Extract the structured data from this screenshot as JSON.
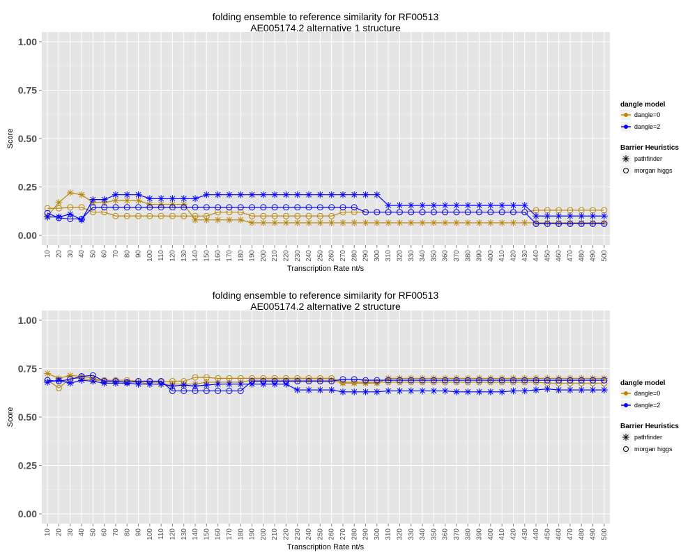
{
  "chart_data": [
    {
      "type": "line",
      "title_line1": "folding ensemble to reference similarity for RF00513",
      "title_line2": "AE005174.2 alternative 1 structure",
      "xlabel": "Transcription Rate nt/s",
      "ylabel": "Score",
      "ylim": [
        -0.05,
        1.05
      ],
      "yticks": [
        "0.00",
        "0.25",
        "0.50",
        "0.75",
        "1.00"
      ],
      "ytick_values": [
        0,
        0.25,
        0.5,
        0.75,
        1.0
      ],
      "categories": [
        "10",
        "20",
        "30",
        "40",
        "50",
        "60",
        "70",
        "80",
        "90",
        "100",
        "110",
        "120",
        "130",
        "140",
        "150",
        "160",
        "170",
        "180",
        "190",
        "200",
        "210",
        "220",
        "230",
        "240",
        "250",
        "260",
        "270",
        "280",
        "290",
        "300",
        "310",
        "320",
        "330",
        "340",
        "350",
        "360",
        "370",
        "380",
        "390",
        "400",
        "410",
        "420",
        "430",
        "440",
        "450",
        "460",
        "470",
        "480",
        "490",
        "500"
      ],
      "grid": true,
      "legend_placement": "right",
      "series": [
        {
          "name": "dangle=0 pathfinder",
          "dangle": "dangle=0",
          "heuristic": "pathfinder",
          "color": "#b8860b",
          "values": [
            0.1,
            0.17,
            0.22,
            0.21,
            0.17,
            0.17,
            0.18,
            0.18,
            0.18,
            0.16,
            0.16,
            0.16,
            0.16,
            0.08,
            0.08,
            0.08,
            0.08,
            0.08,
            0.065,
            0.065,
            0.065,
            0.065,
            0.065,
            0.065,
            0.065,
            0.065,
            0.065,
            0.065,
            0.065,
            0.065,
            0.065,
            0.065,
            0.065,
            0.065,
            0.065,
            0.065,
            0.065,
            0.065,
            0.065,
            0.065,
            0.065,
            0.065,
            0.065,
            0.065,
            0.065,
            0.065,
            0.065,
            0.065,
            0.065,
            0.065
          ]
        },
        {
          "name": "dangle=0 morgan higgs",
          "dangle": "dangle=0",
          "heuristic": "morgan higgs",
          "color": "#b8860b",
          "values": [
            0.14,
            0.14,
            0.145,
            0.145,
            0.12,
            0.12,
            0.1,
            0.1,
            0.1,
            0.1,
            0.1,
            0.1,
            0.1,
            0.1,
            0.1,
            0.12,
            0.12,
            0.12,
            0.1,
            0.1,
            0.1,
            0.1,
            0.1,
            0.1,
            0.1,
            0.1,
            0.12,
            0.12,
            0.12,
            0.12,
            0.12,
            0.12,
            0.12,
            0.12,
            0.12,
            0.12,
            0.12,
            0.12,
            0.12,
            0.12,
            0.12,
            0.12,
            0.12,
            0.13,
            0.13,
            0.13,
            0.13,
            0.13,
            0.13,
            0.13
          ]
        },
        {
          "name": "dangle=2 pathfinder",
          "dangle": "dangle=2",
          "heuristic": "pathfinder",
          "color": "#0000ff",
          "values": [
            0.095,
            0.095,
            0.11,
            0.08,
            0.185,
            0.185,
            0.21,
            0.21,
            0.21,
            0.19,
            0.19,
            0.19,
            0.19,
            0.19,
            0.21,
            0.21,
            0.21,
            0.21,
            0.21,
            0.21,
            0.21,
            0.21,
            0.21,
            0.21,
            0.21,
            0.21,
            0.21,
            0.21,
            0.21,
            0.21,
            0.155,
            0.155,
            0.155,
            0.155,
            0.155,
            0.155,
            0.155,
            0.155,
            0.155,
            0.155,
            0.155,
            0.155,
            0.155,
            0.1,
            0.1,
            0.1,
            0.1,
            0.1,
            0.1,
            0.1
          ]
        },
        {
          "name": "dangle=2 morgan higgs",
          "dangle": "dangle=2",
          "heuristic": "morgan higgs",
          "color": "#0000ff",
          "values": [
            0.115,
            0.09,
            0.085,
            0.085,
            0.145,
            0.145,
            0.145,
            0.145,
            0.145,
            0.145,
            0.145,
            0.145,
            0.145,
            0.145,
            0.145,
            0.145,
            0.145,
            0.145,
            0.145,
            0.145,
            0.145,
            0.145,
            0.145,
            0.145,
            0.145,
            0.145,
            0.145,
            0.145,
            0.12,
            0.12,
            0.12,
            0.12,
            0.12,
            0.12,
            0.12,
            0.12,
            0.12,
            0.12,
            0.12,
            0.12,
            0.12,
            0.12,
            0.12,
            0.06,
            0.06,
            0.06,
            0.06,
            0.06,
            0.06,
            0.06
          ]
        }
      ]
    },
    {
      "type": "line",
      "title_line1": "folding ensemble to reference similarity for RF00513",
      "title_line2": "AE005174.2 alternative 2 structure",
      "xlabel": "Transcription Rate nt/s",
      "ylabel": "Score",
      "ylim": [
        -0.05,
        1.05
      ],
      "yticks": [
        "0.00",
        "0.25",
        "0.50",
        "0.75",
        "1.00"
      ],
      "ytick_values": [
        0,
        0.25,
        0.5,
        0.75,
        1.0
      ],
      "categories": [
        "10",
        "20",
        "30",
        "40",
        "50",
        "60",
        "70",
        "80",
        "90",
        "100",
        "110",
        "120",
        "130",
        "140",
        "150",
        "160",
        "170",
        "180",
        "190",
        "200",
        "210",
        "220",
        "230",
        "240",
        "250",
        "260",
        "270",
        "280",
        "290",
        "300",
        "310",
        "320",
        "330",
        "340",
        "350",
        "360",
        "370",
        "380",
        "390",
        "400",
        "410",
        "420",
        "430",
        "440",
        "450",
        "460",
        "470",
        "480",
        "490",
        "500"
      ],
      "grid": true,
      "legend_placement": "right",
      "series": [
        {
          "name": "dangle=0 pathfinder",
          "dangle": "dangle=0",
          "heuristic": "pathfinder",
          "color": "#b8860b",
          "values": [
            0.725,
            0.7,
            0.715,
            0.71,
            0.7,
            0.685,
            0.685,
            0.68,
            0.68,
            0.67,
            0.67,
            0.67,
            0.67,
            0.67,
            0.68,
            0.68,
            0.68,
            0.68,
            0.69,
            0.69,
            0.69,
            0.69,
            0.69,
            0.69,
            0.69,
            0.69,
            0.675,
            0.675,
            0.675,
            0.675,
            0.7,
            0.7,
            0.7,
            0.7,
            0.7,
            0.7,
            0.7,
            0.7,
            0.7,
            0.7,
            0.7,
            0.7,
            0.7,
            0.7,
            0.7,
            0.7,
            0.7,
            0.7,
            0.7,
            0.7
          ]
        },
        {
          "name": "dangle=0 morgan higgs",
          "dangle": "dangle=0",
          "heuristic": "morgan higgs",
          "color": "#b8860b",
          "values": [
            0.69,
            0.65,
            0.7,
            0.7,
            0.69,
            0.69,
            0.69,
            0.69,
            0.685,
            0.68,
            0.68,
            0.685,
            0.685,
            0.705,
            0.705,
            0.7,
            0.7,
            0.7,
            0.7,
            0.7,
            0.7,
            0.7,
            0.7,
            0.7,
            0.7,
            0.7,
            0.68,
            0.68,
            0.68,
            0.68,
            0.68,
            0.68,
            0.68,
            0.68,
            0.68,
            0.68,
            0.68,
            0.68,
            0.68,
            0.68,
            0.68,
            0.68,
            0.68,
            0.68,
            0.675,
            0.675,
            0.675,
            0.675,
            0.675,
            0.675
          ]
        },
        {
          "name": "dangle=2 pathfinder",
          "dangle": "dangle=2",
          "heuristic": "pathfinder",
          "color": "#0000ff",
          "values": [
            0.68,
            0.69,
            0.675,
            0.69,
            0.685,
            0.675,
            0.675,
            0.675,
            0.67,
            0.67,
            0.67,
            0.66,
            0.665,
            0.66,
            0.665,
            0.67,
            0.67,
            0.67,
            0.67,
            0.67,
            0.67,
            0.67,
            0.64,
            0.64,
            0.64,
            0.64,
            0.63,
            0.63,
            0.63,
            0.63,
            0.635,
            0.635,
            0.635,
            0.635,
            0.635,
            0.635,
            0.63,
            0.63,
            0.63,
            0.63,
            0.63,
            0.635,
            0.635,
            0.64,
            0.645,
            0.64,
            0.64,
            0.64,
            0.64,
            0.64
          ]
        },
        {
          "name": "dangle=2 morgan higgs",
          "dangle": "dangle=2",
          "heuristic": "morgan higgs",
          "color": "#0000ff",
          "values": [
            0.69,
            0.685,
            0.695,
            0.71,
            0.715,
            0.685,
            0.685,
            0.68,
            0.685,
            0.685,
            0.685,
            0.635,
            0.635,
            0.635,
            0.635,
            0.635,
            0.635,
            0.635,
            0.685,
            0.685,
            0.685,
            0.685,
            0.685,
            0.685,
            0.685,
            0.685,
            0.695,
            0.695,
            0.69,
            0.69,
            0.69,
            0.69,
            0.69,
            0.69,
            0.69,
            0.69,
            0.69,
            0.69,
            0.69,
            0.69,
            0.69,
            0.69,
            0.69,
            0.69,
            0.69,
            0.69,
            0.69,
            0.69,
            0.69,
            0.69
          ]
        }
      ]
    }
  ],
  "legend": {
    "dangle_title": "dangle model",
    "dangle_items": [
      {
        "label": "dangle=0",
        "color": "#b8860b"
      },
      {
        "label": "dangle=2",
        "color": "#0000ff"
      }
    ],
    "heuristics_title": "Barrier Heuristics",
    "heuristic_items": [
      {
        "label": "pathfinder",
        "shape": "asterisk"
      },
      {
        "label": "morgan higgs",
        "shape": "open-circle"
      }
    ]
  }
}
